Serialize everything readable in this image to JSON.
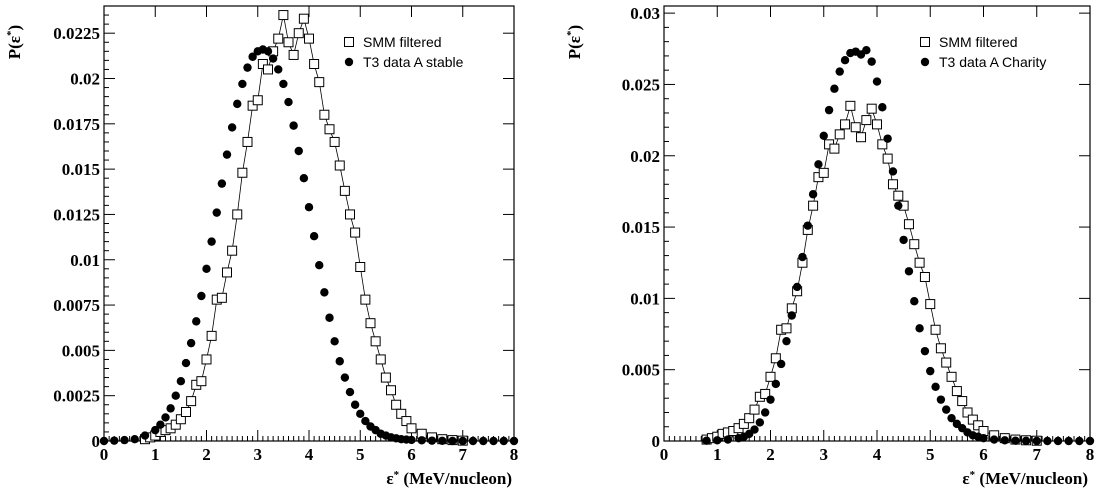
{
  "chart_data": [
    {
      "type": "scatter",
      "xlabel": "ε* (MeV/nucleon)",
      "ylabel": "P(ε*)",
      "xlim": [
        0,
        8
      ],
      "ylim": [
        0,
        0.024
      ],
      "x_ticks": [
        0,
        1,
        2,
        3,
        4,
        5,
        6,
        7,
        8
      ],
      "y_ticks": [
        0,
        0.0025,
        0.005,
        0.0075,
        0.01,
        0.0125,
        0.015,
        0.0175,
        0.02,
        0.0225
      ],
      "y_tick_labels": [
        "0",
        "0.0025",
        "0.005",
        "0.0075",
        "0.01",
        "0.0125",
        "0.015",
        "0.0175",
        "0.02",
        "0.0225"
      ],
      "legend_position": "top-right",
      "series": [
        {
          "name": "SMM filtered",
          "marker": "open-square",
          "color": "#000000",
          "x": [
            0.8,
            0.9,
            1.0,
            1.1,
            1.2,
            1.3,
            1.4,
            1.5,
            1.6,
            1.7,
            1.8,
            1.9,
            2.0,
            2.1,
            2.2,
            2.3,
            2.4,
            2.5,
            2.6,
            2.7,
            2.8,
            2.9,
            3.0,
            3.1,
            3.2,
            3.3,
            3.4,
            3.5,
            3.6,
            3.7,
            3.8,
            3.9,
            4.0,
            4.1,
            4.2,
            4.3,
            4.4,
            4.5,
            4.6,
            4.7,
            4.8,
            4.9,
            5.0,
            5.1,
            5.2,
            5.3,
            5.4,
            5.5,
            5.6,
            5.7,
            5.8,
            5.9,
            6.0,
            6.2,
            6.4,
            6.6,
            6.8,
            7.0
          ],
          "y": [
            0.0001,
            0.0002,
            0.0003,
            0.0005,
            0.0006,
            0.0007,
            0.0009,
            0.0012,
            0.0016,
            0.0022,
            0.0031,
            0.0033,
            0.0045,
            0.0058,
            0.0078,
            0.0079,
            0.0093,
            0.0105,
            0.0125,
            0.0148,
            0.0165,
            0.0185,
            0.0188,
            0.0208,
            0.0205,
            0.0215,
            0.0222,
            0.0235,
            0.022,
            0.0213,
            0.0225,
            0.0233,
            0.0222,
            0.0208,
            0.0198,
            0.018,
            0.0172,
            0.0165,
            0.0152,
            0.0138,
            0.0125,
            0.0115,
            0.0096,
            0.0078,
            0.0065,
            0.0055,
            0.0045,
            0.0035,
            0.0028,
            0.002,
            0.0015,
            0.0011,
            0.0007,
            0.0004,
            0.0002,
            0.0001,
            5e-05,
            2e-05
          ]
        },
        {
          "name": "T3 data A stable",
          "marker": "filled-circle",
          "color": "#000000",
          "x": [
            0.0,
            0.2,
            0.4,
            0.6,
            0.8,
            1.0,
            1.1,
            1.2,
            1.3,
            1.4,
            1.5,
            1.6,
            1.7,
            1.8,
            1.9,
            2.0,
            2.1,
            2.2,
            2.3,
            2.4,
            2.5,
            2.6,
            2.7,
            2.8,
            2.9,
            3.0,
            3.1,
            3.2,
            3.3,
            3.4,
            3.5,
            3.6,
            3.7,
            3.8,
            3.9,
            4.0,
            4.1,
            4.2,
            4.3,
            4.4,
            4.5,
            4.6,
            4.7,
            4.8,
            4.9,
            5.0,
            5.1,
            5.2,
            5.3,
            5.4,
            5.5,
            5.6,
            5.7,
            5.8,
            5.9,
            6.0,
            6.2,
            6.4,
            6.6,
            6.8,
            7.0,
            7.2,
            7.4,
            7.6,
            7.8,
            8.0
          ],
          "y": [
            0.0,
            2e-05,
            5e-05,
            0.0001,
            0.0003,
            0.0006,
            0.0009,
            0.0013,
            0.0018,
            0.0025,
            0.0033,
            0.0043,
            0.0054,
            0.0066,
            0.008,
            0.0095,
            0.011,
            0.0126,
            0.0142,
            0.0158,
            0.0173,
            0.0186,
            0.0197,
            0.0206,
            0.0212,
            0.0215,
            0.0216,
            0.0215,
            0.0211,
            0.0205,
            0.0197,
            0.0187,
            0.0174,
            0.016,
            0.0145,
            0.0129,
            0.0113,
            0.0097,
            0.0082,
            0.0068,
            0.0055,
            0.0044,
            0.0035,
            0.0027,
            0.002,
            0.0015,
            0.0011,
            0.0008,
            0.0006,
            0.0004,
            0.0003,
            0.0002,
            0.00015,
            0.0001,
            8e-05,
            6e-05,
            4e-05,
            2e-05,
            1e-05,
            0.0,
            0.0,
            0.0,
            0.0,
            0.0,
            0.0,
            0.0
          ]
        }
      ]
    },
    {
      "type": "scatter",
      "xlabel": "ε* (MeV/nucleon)",
      "ylabel": "P(ε*)",
      "xlim": [
        0,
        8
      ],
      "ylim": [
        0,
        0.0305
      ],
      "x_ticks": [
        0,
        1,
        2,
        3,
        4,
        5,
        6,
        7,
        8
      ],
      "y_ticks": [
        0,
        0.005,
        0.01,
        0.015,
        0.02,
        0.025,
        0.03
      ],
      "y_tick_labels": [
        "0",
        "0.005",
        "0.01",
        "0.015",
        "0.02",
        "0.025",
        "0.03"
      ],
      "legend_position": "top-right",
      "series": [
        {
          "name": "SMM filtered",
          "marker": "open-square",
          "color": "#000000",
          "x": [
            0.8,
            0.9,
            1.0,
            1.1,
            1.2,
            1.3,
            1.4,
            1.5,
            1.6,
            1.7,
            1.8,
            1.9,
            2.0,
            2.1,
            2.2,
            2.3,
            2.4,
            2.5,
            2.6,
            2.7,
            2.8,
            2.9,
            3.0,
            3.1,
            3.2,
            3.3,
            3.4,
            3.5,
            3.6,
            3.7,
            3.8,
            3.9,
            4.0,
            4.1,
            4.2,
            4.3,
            4.4,
            4.5,
            4.6,
            4.7,
            4.8,
            4.9,
            5.0,
            5.1,
            5.2,
            5.3,
            5.4,
            5.5,
            5.6,
            5.7,
            5.8,
            5.9,
            6.0,
            6.2,
            6.4,
            6.6,
            6.8,
            7.0
          ],
          "y": [
            0.0001,
            0.0002,
            0.0003,
            0.0005,
            0.0006,
            0.0007,
            0.0009,
            0.0012,
            0.0016,
            0.0022,
            0.0031,
            0.0033,
            0.0045,
            0.0058,
            0.0078,
            0.0079,
            0.0093,
            0.0105,
            0.0125,
            0.0148,
            0.0165,
            0.0185,
            0.0188,
            0.0208,
            0.0205,
            0.0215,
            0.0222,
            0.0235,
            0.022,
            0.0213,
            0.0225,
            0.0233,
            0.0222,
            0.0208,
            0.0198,
            0.018,
            0.0172,
            0.0165,
            0.0152,
            0.0138,
            0.0125,
            0.0115,
            0.0096,
            0.0078,
            0.0065,
            0.0055,
            0.0045,
            0.0035,
            0.0028,
            0.002,
            0.0015,
            0.0011,
            0.0007,
            0.0004,
            0.0002,
            0.0001,
            5e-05,
            2e-05
          ]
        },
        {
          "name": "T3 data A Charity",
          "marker": "filled-circle",
          "color": "#000000",
          "x": [
            0.8,
            1.0,
            1.2,
            1.4,
            1.5,
            1.6,
            1.7,
            1.8,
            1.9,
            2.0,
            2.1,
            2.2,
            2.3,
            2.4,
            2.5,
            2.6,
            2.7,
            2.8,
            2.9,
            3.0,
            3.1,
            3.2,
            3.3,
            3.4,
            3.5,
            3.6,
            3.7,
            3.8,
            3.9,
            4.0,
            4.1,
            4.2,
            4.3,
            4.4,
            4.5,
            4.6,
            4.7,
            4.8,
            4.9,
            5.0,
            5.1,
            5.2,
            5.3,
            5.4,
            5.5,
            5.6,
            5.7,
            5.8,
            5.9,
            6.0,
            6.2,
            6.4,
            6.6,
            6.8,
            7.0,
            7.2,
            7.4,
            7.6,
            7.8,
            8.0
          ],
          "y": [
            2e-05,
            5e-05,
            0.0001,
            0.0002,
            0.0003,
            0.0005,
            0.0008,
            0.0013,
            0.002,
            0.0029,
            0.004,
            0.0054,
            0.007,
            0.0088,
            0.0108,
            0.0129,
            0.0151,
            0.0173,
            0.0194,
            0.0214,
            0.0232,
            0.0247,
            0.0259,
            0.0267,
            0.0272,
            0.0273,
            0.0271,
            0.0274,
            0.0266,
            0.0252,
            0.0234,
            0.0212,
            0.0189,
            0.0165,
            0.0141,
            0.0119,
            0.0098,
            0.0079,
            0.0063,
            0.0049,
            0.0038,
            0.0029,
            0.0022,
            0.0016,
            0.0012,
            0.0009,
            0.0006,
            0.0004,
            0.0003,
            0.0002,
            0.0001,
            5e-05,
            2e-05,
            1e-05,
            0.0,
            0.0,
            0.0,
            0.0,
            0.0,
            0.0
          ]
        }
      ]
    }
  ]
}
